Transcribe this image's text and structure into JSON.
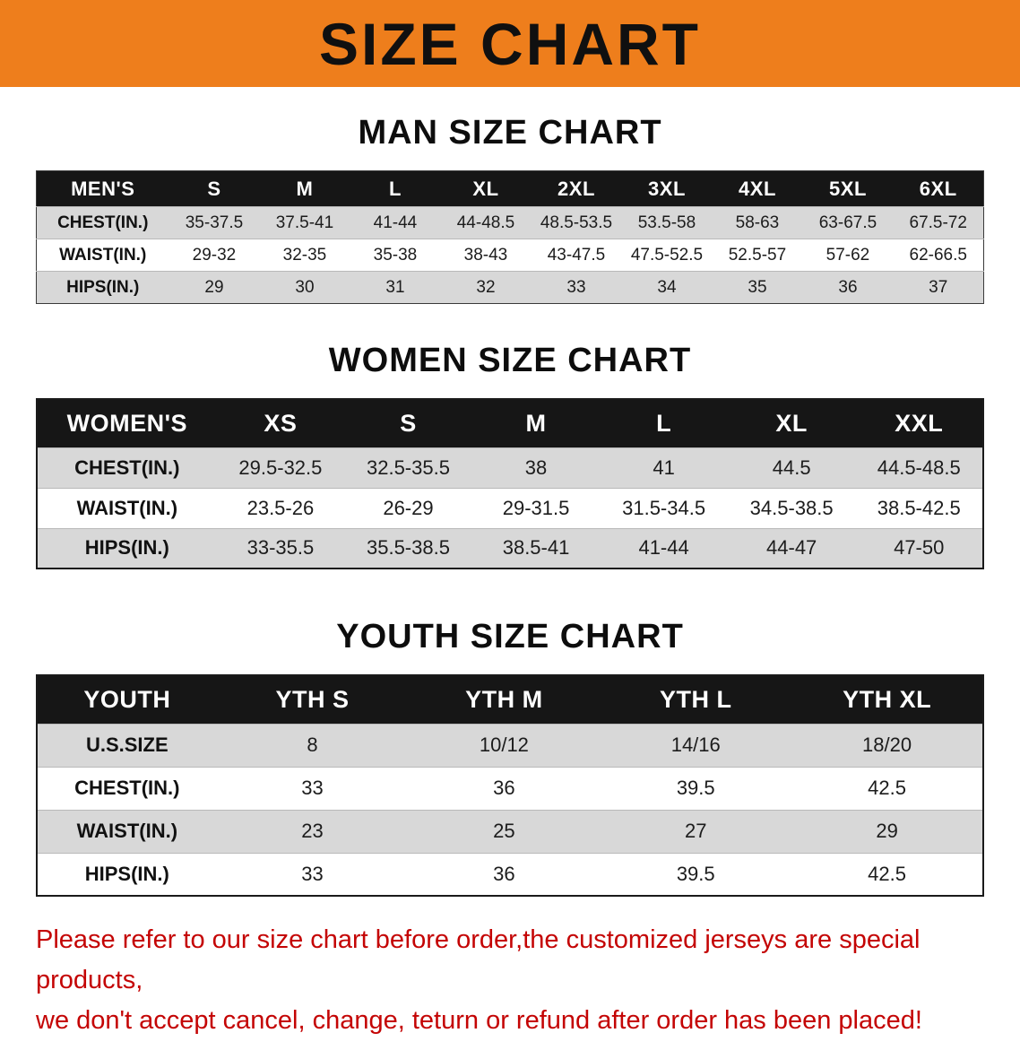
{
  "banner": {
    "title": "SIZE CHART"
  },
  "colors": {
    "banner": "#EE7E1C",
    "table-header": "#161616",
    "stripe": "#D8D8D8",
    "disclaimer": "#C40404"
  },
  "tables": [
    {
      "title": "MAN SIZE CHART",
      "header": [
        "MEN'S",
        "S",
        "M",
        "L",
        "XL",
        "2XL",
        "3XL",
        "4XL",
        "5XL",
        "6XL"
      ],
      "rows": [
        [
          "CHEST(IN.)",
          "35-37.5",
          "37.5-41",
          "41-44",
          "44-48.5",
          "48.5-53.5",
          "53.5-58",
          "58-63",
          "63-67.5",
          "67.5-72"
        ],
        [
          "WAIST(IN.)",
          "29-32",
          "32-35",
          "35-38",
          "38-43",
          "43-47.5",
          "47.5-52.5",
          "52.5-57",
          "57-62",
          "62-66.5"
        ],
        [
          "HIPS(IN.)",
          "29",
          "30",
          "31",
          "32",
          "33",
          "34",
          "35",
          "36",
          "37"
        ]
      ]
    },
    {
      "title": "WOMEN SIZE CHART",
      "header": [
        "WOMEN'S",
        "XS",
        "S",
        "M",
        "L",
        "XL",
        "XXL"
      ],
      "rows": [
        [
          "CHEST(IN.)",
          "29.5-32.5",
          "32.5-35.5",
          "38",
          "41",
          "44.5",
          "44.5-48.5"
        ],
        [
          "WAIST(IN.)",
          "23.5-26",
          "26-29",
          "29-31.5",
          "31.5-34.5",
          "34.5-38.5",
          "38.5-42.5"
        ],
        [
          "HIPS(IN.)",
          "33-35.5",
          "35.5-38.5",
          "38.5-41",
          "41-44",
          "44-47",
          "47-50"
        ]
      ]
    },
    {
      "title": "YOUTH SIZE CHART",
      "header": [
        "YOUTH",
        "YTH S",
        "YTH M",
        "YTH L",
        "YTH XL"
      ],
      "rows": [
        [
          "U.S.SIZE",
          "8",
          "10/12",
          "14/16",
          "18/20"
        ],
        [
          "CHEST(IN.)",
          "33",
          "36",
          "39.5",
          "42.5"
        ],
        [
          "WAIST(IN.)",
          "23",
          "25",
          "27",
          "29"
        ],
        [
          "HIPS(IN.)",
          "33",
          "36",
          "39.5",
          "42.5"
        ]
      ]
    }
  ],
  "disclaimer": {
    "line1": "Please refer to our size chart before order,the customized jerseys are special products,",
    "line2": "we don't accept cancel, change, teturn or refund after order has been placed!"
  }
}
